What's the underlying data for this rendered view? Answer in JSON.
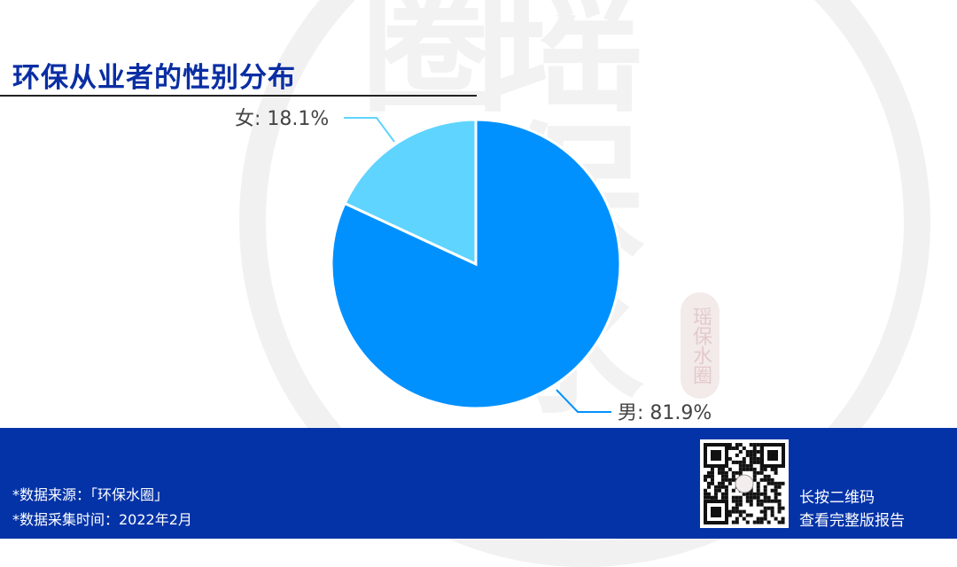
{
  "title": "环保从业者的性别分布",
  "watermark": "瑶保水圈",
  "chart_data": {
    "type": "pie",
    "title": "环保从业者的性别分布",
    "slices": [
      {
        "label": "男",
        "value": 81.9,
        "display": "男: 81.9%",
        "color": "#0091ff"
      },
      {
        "label": "女",
        "value": 18.1,
        "display": "女: 18.1%",
        "color": "#5fd4ff"
      }
    ]
  },
  "footer": {
    "source": "*数据来源：「环保水圈」",
    "time": "*数据采集时间：2022年2月",
    "qr_line1": "长按二维码",
    "qr_line2": "查看完整版报告",
    "background": "#0433a8"
  }
}
